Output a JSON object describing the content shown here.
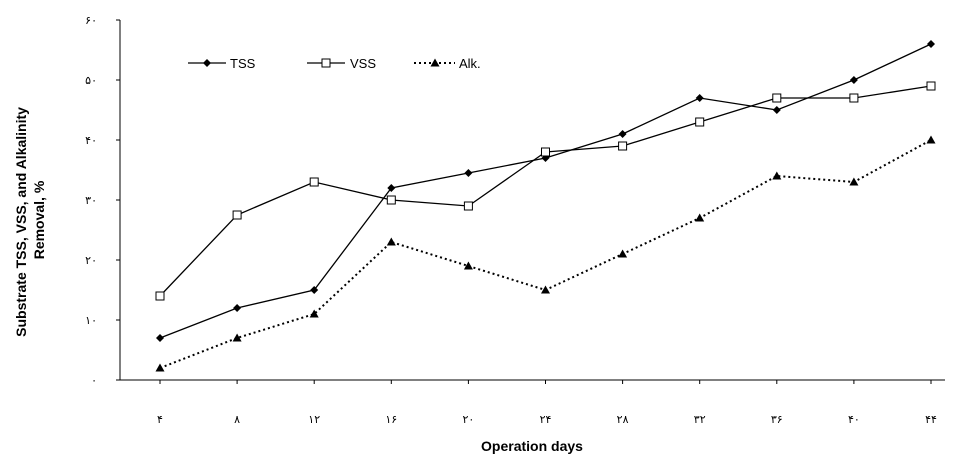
{
  "chart_data": {
    "type": "line",
    "xlabel": "Operation days",
    "ylabel_lines": [
      "Substrate TSS, VSS, and Alkalinity",
      "Removal, %"
    ],
    "x_tick_labels": [
      "۴",
      "۸",
      "۱۲",
      "۱۶",
      "۲۰",
      "۲۴",
      "۲۸",
      "۳۲",
      "۳۶",
      "۴۰",
      "۴۴"
    ],
    "y_tick_labels": [
      "۰",
      "۱۰",
      "۲۰",
      "۳۰",
      "۴۰",
      "۵۰",
      "۶۰"
    ],
    "x": [
      4,
      8,
      12,
      16,
      20,
      24,
      28,
      32,
      36,
      40,
      44
    ],
    "ylim": [
      0,
      60
    ],
    "grid": false,
    "legend_position": "top-left",
    "series": [
      {
        "name": "TSS",
        "marker": "diamond-filled",
        "line": "solid",
        "values": [
          7,
          12,
          15,
          32,
          34.5,
          37,
          41,
          47,
          45,
          50,
          56
        ]
      },
      {
        "name": "VSS",
        "marker": "square-open",
        "line": "solid",
        "values": [
          14,
          27.5,
          33,
          30,
          29,
          38,
          39,
          43,
          47,
          47,
          49
        ]
      },
      {
        "name": "Alk.",
        "marker": "triangle-filled",
        "line": "dotted",
        "values": [
          2,
          7,
          11,
          23,
          19,
          15,
          21,
          27,
          34,
          33,
          40
        ]
      }
    ]
  }
}
